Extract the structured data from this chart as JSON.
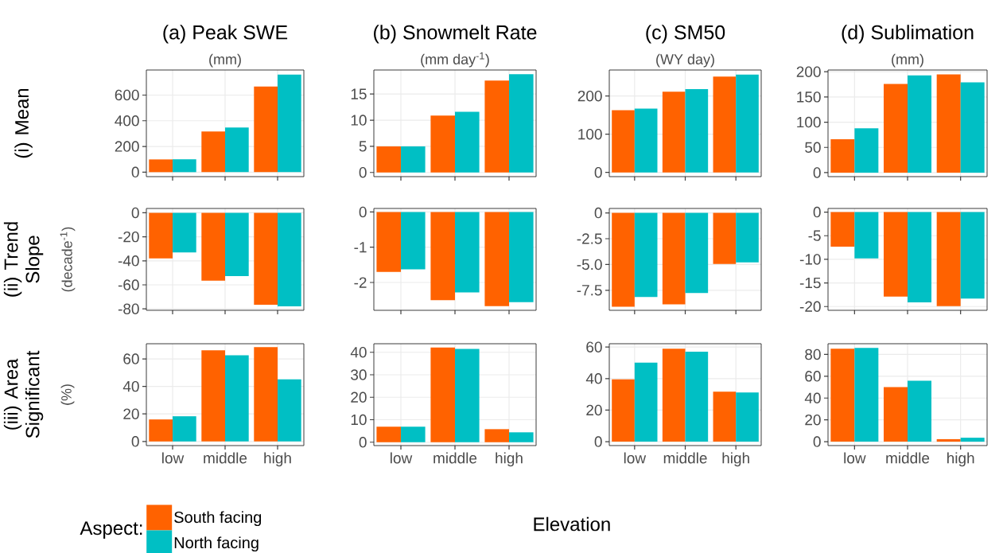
{
  "chart_data": [
    {
      "type": "bar",
      "title": "(a) Peak SWE",
      "subtitle": "(mm)",
      "ylabel": "(i) Mean",
      "categories": [
        null,
        null,
        null
      ],
      "ylim": [
        -35,
        795
      ],
      "yticks": [
        0,
        200,
        400,
        600
      ],
      "grid": true,
      "series": [
        {
          "color": "#ff6200",
          "values": [
            99,
            316,
            667
          ]
        },
        {
          "color": "#00bfc4",
          "values": [
            100,
            347,
            759
          ]
        }
      ]
    },
    {
      "type": "bar",
      "title": "(b) Snowmelt Rate",
      "subtitle": "(mm day$^{-1}$)",
      "categories": [
        null,
        null,
        null
      ],
      "ylim": [
        -0.8,
        19.6
      ],
      "yticks": [
        0,
        5,
        10,
        15
      ],
      "grid": true,
      "series": [
        {
          "color": "#ff6200",
          "values": [
            5,
            10.9,
            17.6
          ]
        },
        {
          "color": "#00bfc4",
          "values": [
            5,
            11.6,
            18.8
          ]
        }
      ]
    },
    {
      "type": "bar",
      "title": "(c) SM50",
      "subtitle": "(WY day)",
      "categories": [
        null,
        null,
        null
      ],
      "ylim": [
        -11,
        268
      ],
      "yticks": [
        0,
        100,
        200
      ],
      "grid": true,
      "series": [
        {
          "color": "#ff6200",
          "values": [
            163,
            211,
            251
          ]
        },
        {
          "color": "#00bfc4",
          "values": [
            167,
            218,
            256
          ]
        }
      ]
    },
    {
      "type": "bar",
      "title": "(d) Sublimation",
      "subtitle": "(mm)",
      "categories": [
        null,
        null,
        null
      ],
      "ylim": [
        -8,
        203.5
      ],
      "yticks": [
        0,
        50,
        100,
        150,
        200
      ],
      "grid": true,
      "series": [
        {
          "color": "#ff6200",
          "values": [
            66,
            176,
            195
          ]
        },
        {
          "color": "#00bfc4",
          "values": [
            88,
            193,
            179
          ]
        }
      ]
    },
    {
      "type": "bar",
      "ylabel": "(ii) Trend Slope",
      "annotations": [
        "(decade$^{-1}$)"
      ],
      "categories": [
        null,
        null,
        null
      ],
      "ylim": [
        -81.2,
        3.6
      ],
      "yticks": [
        -80,
        -60,
        -40,
        -20,
        0
      ],
      "grid": true,
      "series": [
        {
          "color": "#ff6200",
          "values": [
            -38,
            -56.5,
            -76.5
          ]
        },
        {
          "color": "#00bfc4",
          "values": [
            -33,
            -52.7,
            -77.9
          ]
        }
      ]
    },
    {
      "type": "bar",
      "categories": [
        null,
        null,
        null
      ],
      "ylim": [
        -2.79,
        0.1
      ],
      "yticks": [
        -2,
        -1,
        0
      ],
      "grid": true,
      "series": [
        {
          "color": "#ff6200",
          "values": [
            -1.7,
            -2.5,
            -2.67
          ]
        },
        {
          "color": "#00bfc4",
          "values": [
            -1.63,
            -2.28,
            -2.56
          ]
        }
      ]
    },
    {
      "type": "bar",
      "categories": [
        null,
        null,
        null
      ],
      "ylim": [
        -9.44,
        0.43
      ],
      "yticks": [
        {
          "value": -7.5,
          "label": "-7.5"
        },
        {
          "value": -5,
          "label": "-5.0"
        },
        {
          "value": -2.5,
          "label": "-2.5"
        },
        0
      ],
      "grid": true,
      "series": [
        {
          "color": "#ff6200",
          "values": [
            -9.09,
            -8.87,
            -4.94
          ]
        },
        {
          "color": "#00bfc4",
          "values": [
            -8.15,
            -7.77,
            -4.8
          ]
        }
      ]
    },
    {
      "type": "bar",
      "categories": [
        null,
        null,
        null
      ],
      "ylim": [
        -20.8,
        0.77
      ],
      "yticks": [
        -20,
        -15,
        -10,
        -5,
        0
      ],
      "grid": true,
      "series": [
        {
          "color": "#ff6200",
          "values": [
            -7.3,
            -17.9,
            -19.9
          ]
        },
        {
          "color": "#00bfc4",
          "values": [
            -9.8,
            -19.1,
            -18.3
          ]
        }
      ]
    },
    {
      "type": "bar",
      "ylabel": "(iii) Area Significant",
      "annotations": [
        "(%)"
      ],
      "categories": [
        "low",
        "middle",
        "high"
      ],
      "ylim": [
        -3,
        71
      ],
      "yticks": [
        0,
        20,
        40,
        60
      ],
      "grid": true,
      "legend": "bottom",
      "legend_title": "Aspect:",
      "series": [
        {
          "name": "South facing",
          "color": "#ff6200",
          "values": [
            16,
            66.3,
            68.6
          ]
        },
        {
          "name": "North facing",
          "color": "#00bfc4",
          "values": [
            18.3,
            62.6,
            45.2
          ]
        }
      ]
    },
    {
      "type": "bar",
      "xlabel": "Elevation",
      "categories": [
        "low",
        "middle",
        "high"
      ],
      "ylim": [
        -1.5,
        43.8
      ],
      "yticks": [
        0,
        10,
        20,
        30,
        40
      ],
      "grid": true,
      "series": [
        {
          "color": "#ff6200",
          "values": [
            6.9,
            42.1,
            5.8
          ]
        },
        {
          "color": "#00bfc4",
          "values": [
            6.9,
            41.5,
            4.4
          ]
        }
      ]
    },
    {
      "type": "bar",
      "categories": [
        "low",
        "middle",
        "high"
      ],
      "ylim": [
        -2.5,
        62.1
      ],
      "yticks": [
        0,
        20,
        40,
        60
      ],
      "grid": true,
      "series": [
        {
          "color": "#ff6200",
          "values": [
            39.5,
            58.9,
            31.7
          ]
        },
        {
          "color": "#00bfc4",
          "values": [
            50.1,
            57,
            31.2
          ]
        }
      ]
    },
    {
      "type": "bar",
      "categories": [
        "low",
        "middle",
        "high"
      ],
      "ylim": [
        -3.6,
        89.8
      ],
      "yticks": [
        0,
        20,
        40,
        60,
        80
      ],
      "grid": true,
      "series": [
        {
          "color": "#ff6200",
          "values": [
            85.2,
            50.1,
            2.3
          ]
        },
        {
          "color": "#00bfc4",
          "values": [
            85.9,
            55.8,
            3.6
          ]
        }
      ]
    }
  ]
}
